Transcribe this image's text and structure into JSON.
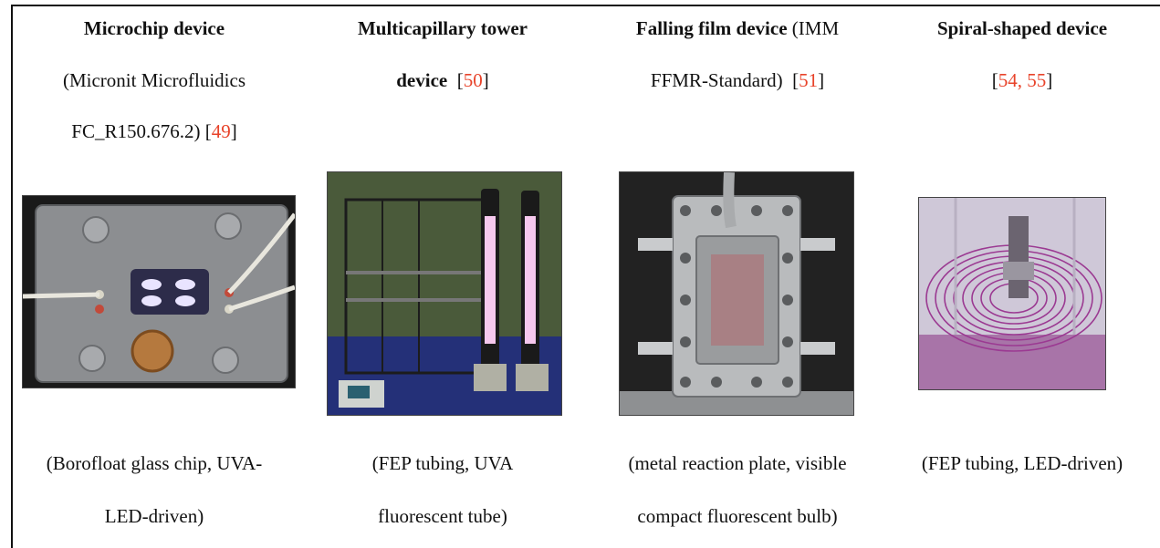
{
  "columns": [
    {
      "title_bold": "Microchip device",
      "title_line2": "(Micronit Microfluidics",
      "title_line3": "FC_R150.676.2) [",
      "ref": "49",
      "title_line3_end": "]",
      "caption_line1": "(Borofloat glass chip, UVA-",
      "caption_line2": "LED-driven)",
      "photo_icon": "microchip-photo"
    },
    {
      "title_bold": "Multicapillary tower",
      "title_line2_bold": "device",
      "title_line2_open": "  [",
      "ref": "50",
      "title_line2_close": "]",
      "caption_line1": "(FEP tubing, UVA",
      "caption_line2": "fluorescent tube)",
      "photo_icon": "multicapillary-tower-photo"
    },
    {
      "title_bold": "Falling film device",
      "title_rest": " (IMM",
      "title_line2": "FFMR-Standard)  [",
      "ref": "51",
      "title_line2_end": "]",
      "caption_line1": "(metal reaction plate, visible",
      "caption_line2": "compact fluorescent bulb)",
      "photo_icon": "falling-film-photo"
    },
    {
      "title_bold": "Spiral-shaped device",
      "title_line2_open": "[",
      "ref": "54, 55",
      "title_line2_close": "]",
      "caption_line1": "(FEP tubing, LED-driven)",
      "photo_icon": "spiral-device-photo"
    }
  ],
  "colors": {
    "reference": "#e8432a",
    "text": "#111111"
  }
}
